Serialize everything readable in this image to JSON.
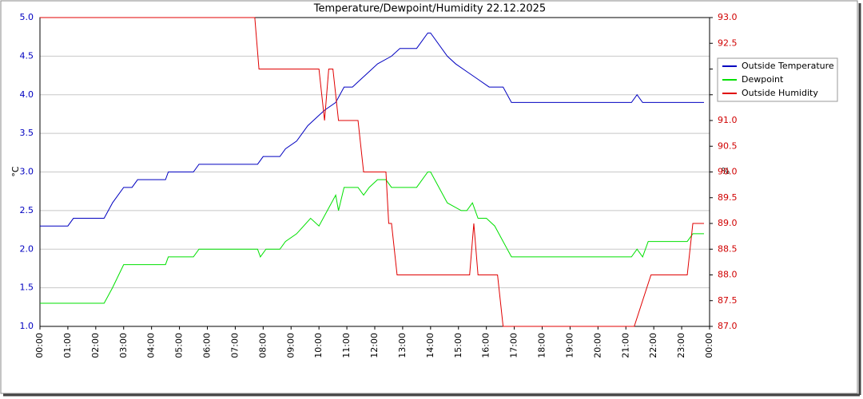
{
  "chart_data": {
    "type": "line",
    "title": "Temperature/Dewpoint/Humidity  22.12.2025",
    "y_label": "°C",
    "y2_label": "%",
    "xlim": [
      0,
      24
    ],
    "xticks": [
      {
        "value": 0,
        "label": "00:00"
      },
      {
        "value": 1,
        "label": "01:00"
      },
      {
        "value": 2,
        "label": "02:00"
      },
      {
        "value": 3,
        "label": "03:00"
      },
      {
        "value": 4,
        "label": "04:00"
      },
      {
        "value": 5,
        "label": "05:00"
      },
      {
        "value": 6,
        "label": "06:00"
      },
      {
        "value": 7,
        "label": "07:00"
      },
      {
        "value": 8,
        "label": "08:00"
      },
      {
        "value": 9,
        "label": "09:00"
      },
      {
        "value": 10,
        "label": "10:00"
      },
      {
        "value": 11,
        "label": "11:00"
      },
      {
        "value": 12,
        "label": "12:00"
      },
      {
        "value": 13,
        "label": "13:00"
      },
      {
        "value": 14,
        "label": "14:00"
      },
      {
        "value": 15,
        "label": "15:00"
      },
      {
        "value": 16,
        "label": "16:00"
      },
      {
        "value": 17,
        "label": "17:00"
      },
      {
        "value": 18,
        "label": "18:00"
      },
      {
        "value": 19,
        "label": "19:00"
      },
      {
        "value": 20,
        "label": "20:00"
      },
      {
        "value": 21,
        "label": "21:00"
      },
      {
        "value": 22,
        "label": "22:00"
      },
      {
        "value": 23,
        "label": "23:00"
      },
      {
        "value": 24,
        "label": "00:00"
      }
    ],
    "ylim": [
      1.0,
      5.0
    ],
    "yticks": [
      {
        "value": 1,
        "label": "1.0"
      },
      1.5,
      {
        "value": 2,
        "label": "2.0"
      },
      2.5,
      {
        "value": 3,
        "label": "3.0"
      },
      3.5,
      {
        "value": 4,
        "label": "4.0"
      },
      4.5,
      {
        "value": 5,
        "label": "5.0"
      }
    ],
    "y2lim": [
      87.0,
      93.0
    ],
    "y2ticks": [
      {
        "value": 87,
        "label": "87.0"
      },
      87.5,
      {
        "value": 88,
        "label": "88.0"
      },
      88.5,
      {
        "value": 89,
        "label": "89.0"
      },
      89.5,
      {
        "value": 90,
        "label": "90.0"
      },
      90.5,
      {
        "value": 91,
        "label": "91.0"
      },
      91.5,
      {
        "value": 92,
        "label": "92.0"
      },
      92.5,
      {
        "value": 93,
        "label": "93.0"
      }
    ],
    "y_color": "#0000c0",
    "y2_color": "#d00000",
    "grid": true,
    "legend": "upper right",
    "series": [
      {
        "name": "Outside Temperature",
        "color": "#0000c0",
        "x": [
          0,
          1.0,
          1.2,
          2.3,
          2.6,
          3.0,
          3.3,
          3.5,
          4.5,
          4.6,
          5.5,
          5.7,
          7.8,
          8.0,
          8.6,
          8.8,
          9.2,
          9.6,
          9.9,
          10.2,
          10.6,
          10.9,
          11.2,
          11.5,
          11.8,
          12.1,
          12.6,
          12.9,
          13.5,
          13.9,
          14.0,
          14.6,
          14.9,
          15.3,
          15.7,
          16.1,
          16.6,
          16.9,
          21.2,
          21.4,
          21.6,
          23.8
        ],
        "values": [
          2.3,
          2.3,
          2.4,
          2.4,
          2.6,
          2.8,
          2.8,
          2.9,
          2.9,
          3.0,
          3.0,
          3.1,
          3.1,
          3.2,
          3.2,
          3.3,
          3.4,
          3.6,
          3.7,
          3.8,
          3.9,
          4.1,
          4.1,
          4.2,
          4.3,
          4.4,
          4.5,
          4.6,
          4.6,
          4.8,
          4.8,
          4.5,
          4.4,
          4.3,
          4.2,
          4.1,
          4.1,
          3.9,
          3.9,
          4.0,
          3.9,
          3.9
        ]
      },
      {
        "name": "Dewpoint",
        "color": "#00e000",
        "x": [
          0,
          2.3,
          2.6,
          3.0,
          4.5,
          4.6,
          5.5,
          5.7,
          7.8,
          7.9,
          8.1,
          8.6,
          8.8,
          9.2,
          9.7,
          10.0,
          10.3,
          10.6,
          10.7,
          10.9,
          11.4,
          11.6,
          11.8,
          12.1,
          12.4,
          12.6,
          13.5,
          13.9,
          14.0,
          14.6,
          15.1,
          15.3,
          15.5,
          15.7,
          16.0,
          16.3,
          16.6,
          16.9,
          21.2,
          21.4,
          21.6,
          21.8,
          23.2,
          23.4,
          23.8
        ],
        "values": [
          1.3,
          1.3,
          1.5,
          1.8,
          1.8,
          1.9,
          1.9,
          2.0,
          2.0,
          1.9,
          2.0,
          2.0,
          2.1,
          2.2,
          2.4,
          2.3,
          2.5,
          2.7,
          2.5,
          2.8,
          2.8,
          2.7,
          2.8,
          2.9,
          2.9,
          2.8,
          2.8,
          3.0,
          3.0,
          2.6,
          2.5,
          2.5,
          2.6,
          2.4,
          2.4,
          2.3,
          2.1,
          1.9,
          1.9,
          2.0,
          1.9,
          2.1,
          2.1,
          2.2,
          2.2
        ]
      },
      {
        "name": "Outside Humidity",
        "color": "#e00000",
        "axis": "y2",
        "x": [
          0,
          7.7,
          7.85,
          10.0,
          10.2,
          10.35,
          10.5,
          10.7,
          11.4,
          11.6,
          12.4,
          12.5,
          12.6,
          12.8,
          15.4,
          15.55,
          15.7,
          16.4,
          16.6,
          21.3,
          21.9,
          23.2,
          23.4,
          23.8
        ],
        "values": [
          93.0,
          93.0,
          92.0,
          92.0,
          91.0,
          92.0,
          92.0,
          91.0,
          91.0,
          90.0,
          90.0,
          89.0,
          89.0,
          88.0,
          88.0,
          89.0,
          88.0,
          88.0,
          87.0,
          87.0,
          88.0,
          88.0,
          89.0,
          89.0
        ]
      }
    ]
  }
}
